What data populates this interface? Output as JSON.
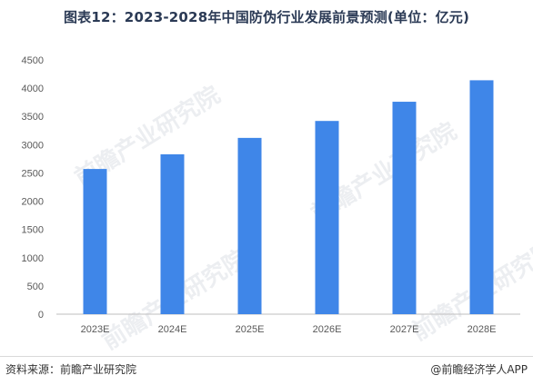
{
  "title": "图表12：2023-2028年中国防伪行业发展前景预测(单位：亿元)",
  "footer": {
    "source": "资料来源：前瞻产业研究院",
    "brand": "@前瞻经济学人APP"
  },
  "watermark_text": "前瞻产业研究院",
  "colors": {
    "bar": "#3f86e8",
    "axis": "#bfbfbf",
    "tick_text": "#595959",
    "title": "#2b3a55"
  },
  "chart_data": {
    "type": "bar",
    "title": "图表12：2023-2028年中国防伪行业发展前景预测(单位：亿元)",
    "categories": [
      "2023E",
      "2024E",
      "2025E",
      "2026E",
      "2027E",
      "2028E"
    ],
    "values": [
      2570,
      2830,
      3120,
      3420,
      3760,
      4140
    ],
    "yticks": [
      "0",
      "500",
      "1000",
      "1500",
      "2000",
      "2500",
      "3000",
      "3500",
      "4000",
      "4500"
    ],
    "ylim": [
      0,
      4500
    ],
    "xlabel": "",
    "ylabel": "",
    "grid": false,
    "legend": "none"
  }
}
